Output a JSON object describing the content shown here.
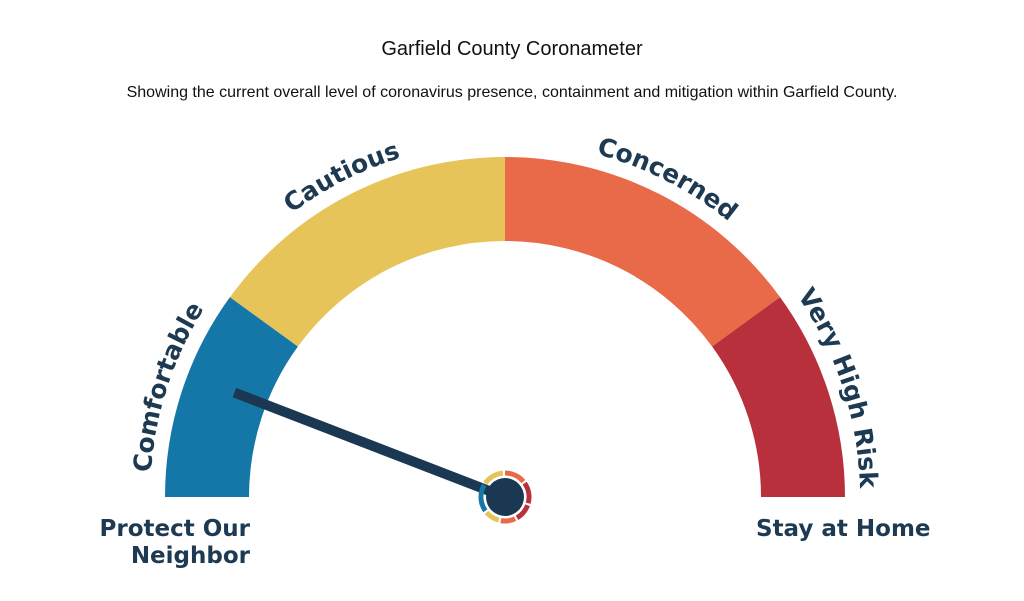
{
  "title": "Garfield County Coronameter",
  "subtitle": "Showing the current overall level of coronavirus presence, containment and mitigation within Garfield County.",
  "chart_data": {
    "type": "gauge",
    "segments": [
      {
        "label": "Comfortable",
        "color": "#1477a8",
        "from": 0,
        "to": 0.2
      },
      {
        "label": "Cautious",
        "color": "#e6c45a",
        "from": 0.2,
        "to": 0.5
      },
      {
        "label": "Concerned",
        "color": "#e86a48",
        "from": 0.5,
        "to": 0.8
      },
      {
        "label": "Very High Risk",
        "color": "#b8303c",
        "from": 0.8,
        "to": 1.0
      }
    ],
    "needle_value": 0.2,
    "needle_color": "#1b3852",
    "end_labels": {
      "left_line1": "Protect Our",
      "left_line2": "Neighbor",
      "right": "Stay at Home"
    }
  }
}
